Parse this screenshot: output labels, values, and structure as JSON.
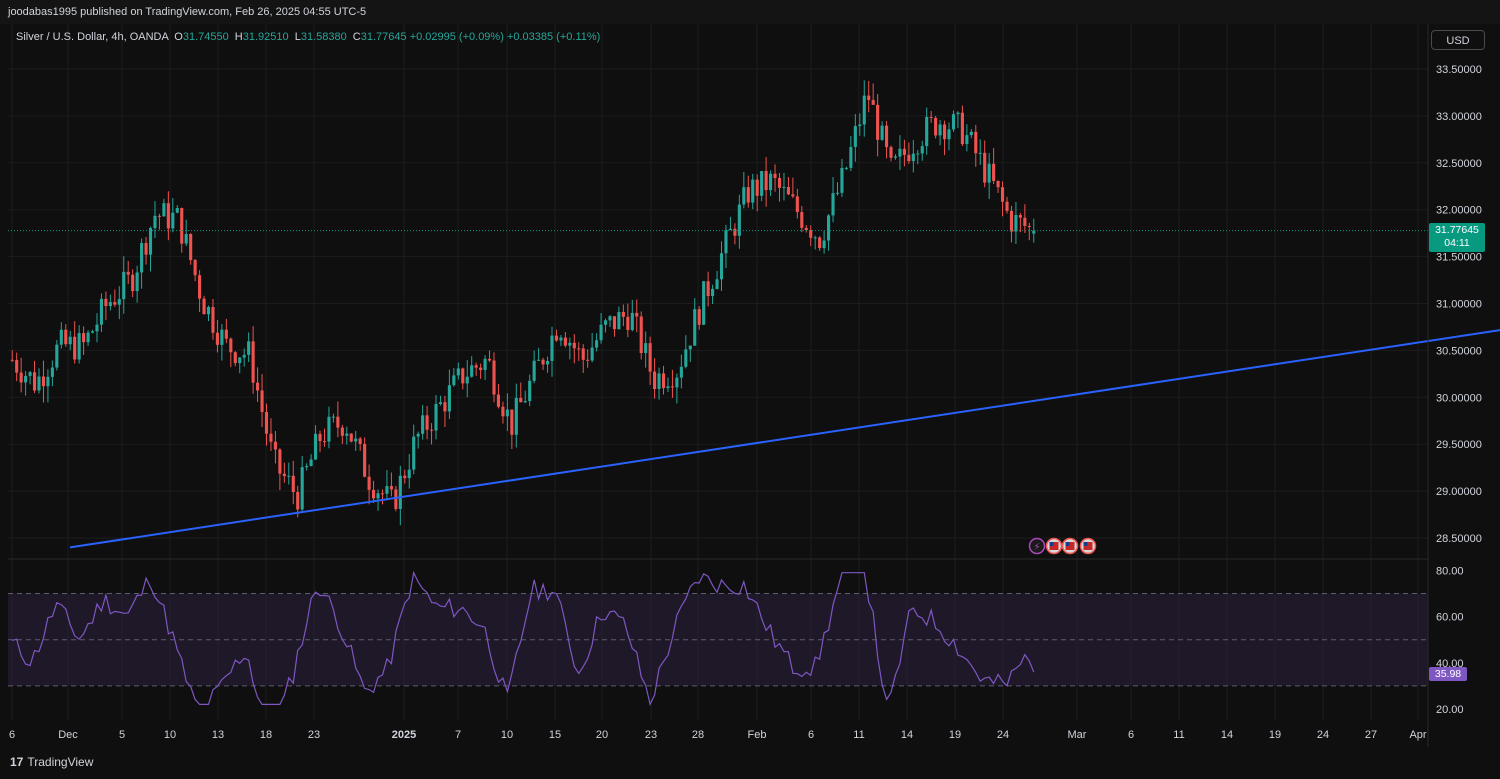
{
  "header": {
    "published_line": "joodabas1995 published on TradingView.com, Feb 26, 2025 04:55 UTC-5"
  },
  "legend": {
    "symbol": "Silver / U.S. Dollar, 4h, OANDA",
    "open_label": "O",
    "open": "31.74550",
    "high_label": "H",
    "high": "31.92510",
    "low_label": "L",
    "low": "31.58380",
    "close_label": "C",
    "close": "31.77645",
    "change": "+0.02995 (+0.09%)",
    "change2": "+0.03385 (+0.11%)"
  },
  "currency_button": "USD",
  "last_price": {
    "value": "31.77645",
    "countdown": "04:11"
  },
  "rsi_value": "35.98",
  "footer": {
    "brand": "TradingView"
  },
  "colors": {
    "background": "#0f0f0f",
    "up": "#26a69a",
    "down": "#ef5350",
    "trendline": "#2962ff",
    "rsi": "#7e57c2",
    "price_tag": "#089981"
  },
  "icons": [
    "lightning-event-icon",
    "us-flag-event-icon",
    "us-flag-event-icon",
    "us-flag-event-icon"
  ],
  "chart_data": [
    {
      "type": "candlestick",
      "y_ticks": [
        "28.50000",
        "29.00000",
        "29.50000",
        "30.00000",
        "30.50000",
        "31.00000",
        "31.50000",
        "32.00000",
        "32.50000",
        "33.00000",
        "33.50000"
      ],
      "ylim": [
        28.35,
        33.7
      ],
      "x_ticks": [
        "6",
        "Dec",
        "5",
        "10",
        "13",
        "18",
        "23",
        "2025",
        "7",
        "10",
        "15",
        "20",
        "23",
        "28",
        "Feb",
        "6",
        "11",
        "14",
        "19",
        "24",
        "Mar",
        "6",
        "11",
        "14",
        "19",
        "24",
        "27",
        "Apr"
      ],
      "close_path_approx": [
        [
          "Nov 26",
          30.4
        ],
        [
          "Nov 29",
          30.15
        ],
        [
          "Dec 2",
          30.55
        ],
        [
          "Dec 4",
          30.55
        ],
        [
          "Dec 6",
          31.0
        ],
        [
          "Dec 9",
          31.25
        ],
        [
          "Dec 10",
          31.95
        ],
        [
          "Dec 12",
          31.9
        ],
        [
          "Dec 13",
          31.05
        ],
        [
          "Dec 16",
          30.55
        ],
        [
          "Dec 18",
          30.45
        ],
        [
          "Dec 19",
          29.3
        ],
        [
          "Dec 20",
          28.95
        ],
        [
          "Dec 23",
          29.6
        ],
        [
          "Dec 26",
          29.75
        ],
        [
          "Dec 30",
          29.15
        ],
        [
          "Dec 31",
          28.85
        ],
        [
          "Jan 3",
          29.55
        ],
        [
          "Jan 6",
          29.9
        ],
        [
          "Jan 8",
          30.25
        ],
        [
          "Jan 10",
          30.4
        ],
        [
          "Jan 13",
          29.7
        ],
        [
          "Jan 15",
          30.25
        ],
        [
          "Jan 17",
          30.8
        ],
        [
          "Jan 20",
          30.4
        ],
        [
          "Jan 22",
          30.75
        ],
        [
          "Jan 24",
          30.9
        ],
        [
          "Jan 27",
          30.2
        ],
        [
          "Jan 29",
          30.3
        ],
        [
          "Jan 31",
          31.0
        ],
        [
          "Feb 3",
          31.6
        ],
        [
          "Feb 5",
          32.2
        ],
        [
          "Feb 7",
          32.3
        ],
        [
          "Feb 10",
          32.0
        ],
        [
          "Feb 12",
          31.7
        ],
        [
          "Feb 13",
          32.35
        ],
        [
          "Feb 14",
          33.25
        ],
        [
          "Feb 17",
          32.4
        ],
        [
          "Feb 18",
          32.75
        ],
        [
          "Feb 20",
          32.95
        ],
        [
          "Feb 21",
          32.85
        ],
        [
          "Feb 24",
          32.4
        ],
        [
          "Feb 25",
          31.9
        ],
        [
          "Feb 26",
          31.78
        ]
      ],
      "last_close": 31.77645
    },
    {
      "type": "line",
      "name": "trendline",
      "points": [
        [
          "Nov 30",
          28.4
        ],
        [
          "Apr 2",
          30.6
        ]
      ]
    },
    {
      "type": "line",
      "name": "RSI",
      "y_ticks": [
        "20.00",
        "40.00",
        "60.00",
        "80.00"
      ],
      "ylim": [
        16.0,
        81.5
      ],
      "bands": [
        30,
        50,
        70
      ],
      "last": 35.98
    }
  ]
}
